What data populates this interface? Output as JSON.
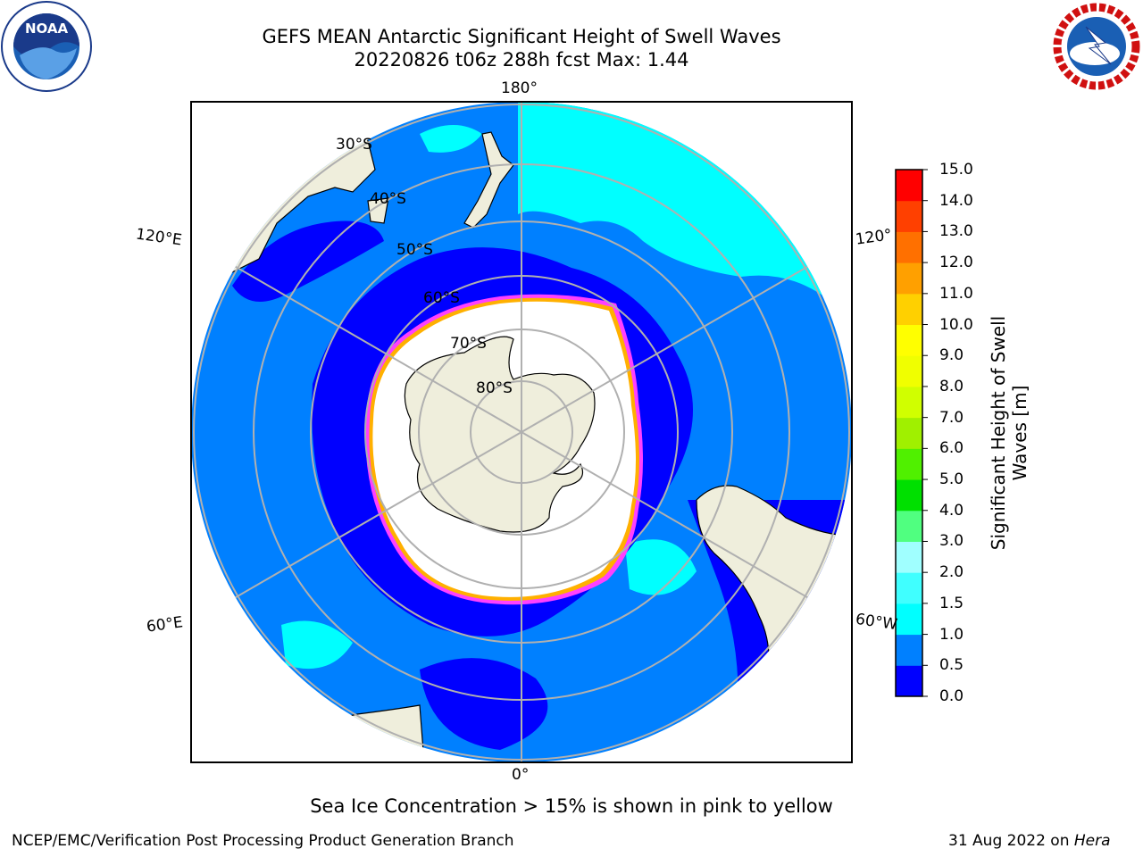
{
  "header": {
    "title_line1": "GEFS MEAN Antarctic Significant Height of Swell Waves",
    "title_line2": "20220826 t06z 288h fcst   Max: 1.44"
  },
  "logos": {
    "left": "noaa-logo",
    "right": "nws-logo"
  },
  "map": {
    "projection": "south-polar-stereographic",
    "longitude_labels": [
      "180°",
      "120°E",
      "120°",
      "60°E",
      "60°W",
      "0°"
    ],
    "latitude_labels": [
      "30°S",
      "40°S",
      "50°S",
      "60°S",
      "70°S",
      "80°S"
    ],
    "colors": {
      "land": "#efeedc",
      "ice": "#ffffff",
      "ocean_low": "#0000ff",
      "ocean_mid": "#0080ff",
      "ocean_high": "#00ffff",
      "ice_edge": "#ff40ff"
    }
  },
  "colorbar": {
    "title": "Significant Height of Swell Waves [m]",
    "ticks": [
      "0.0",
      "0.5",
      "1.0",
      "1.5",
      "2.0",
      "3.0",
      "4.0",
      "5.0",
      "6.0",
      "7.0",
      "8.0",
      "9.0",
      "10.0",
      "11.0",
      "12.0",
      "13.0",
      "14.0",
      "15.0"
    ],
    "colors": [
      "#0000ff",
      "#0080ff",
      "#00ffff",
      "#40ffff",
      "#a0ffff",
      "#50ff80",
      "#00e000",
      "#50f000",
      "#a0f000",
      "#d0ff00",
      "#f0ff00",
      "#ffff00",
      "#ffd000",
      "#ffa000",
      "#ff7000",
      "#ff4000",
      "#ff0000"
    ]
  },
  "footer": {
    "note": "Sea Ice Concentration > 15% is shown in pink to yellow",
    "left": "NCEP/EMC/Verification Post Processing Product Generation Branch",
    "date": "31 Aug 2022 on",
    "host": "Hera"
  }
}
